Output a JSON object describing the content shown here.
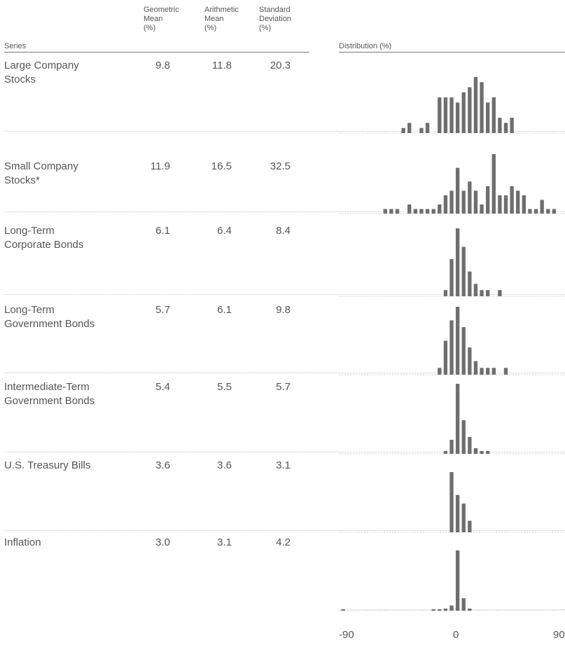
{
  "headers": {
    "series": "Series",
    "geometric": [
      "Geometric",
      "Mean",
      "(%)"
    ],
    "arithmetic": [
      "Arithmetic",
      "Mean",
      "(%)"
    ],
    "stddev": [
      "Standard",
      "Deviation",
      "(%)"
    ],
    "distribution": "Distribution (%)"
  },
  "rows": [
    {
      "name": [
        "Large Company",
        "Stocks"
      ],
      "geo": "9.8",
      "arith": "11.8",
      "sd": "20.3"
    },
    {
      "name": [
        "Small Company",
        "Stocks*"
      ],
      "geo": "11.9",
      "arith": "16.5",
      "sd": "32.5"
    },
    {
      "name": [
        "Long-Term",
        "Corporate Bonds"
      ],
      "geo": "6.1",
      "arith": "6.4",
      "sd": "8.4"
    },
    {
      "name": [
        "Long-Term",
        "Government Bonds"
      ],
      "geo": "5.7",
      "arith": "6.1",
      "sd": "9.8"
    },
    {
      "name": [
        "Intermediate-Term",
        "Government Bonds"
      ],
      "geo": "5.4",
      "arith": "5.5",
      "sd": "5.7"
    },
    {
      "name": [
        "U.S. Treasury Bills"
      ],
      "geo": "3.6",
      "arith": "3.6",
      "sd": "3.1"
    },
    {
      "name": [
        "Inflation"
      ],
      "geo": "3.0",
      "arith": "3.1",
      "sd": "4.2"
    }
  ],
  "axis": {
    "min_label": "-90",
    "mid_label": "0",
    "max_label": "90"
  },
  "chart_data": {
    "type": "bar",
    "xlabel": "",
    "ylabel": "",
    "xlim": [
      -90,
      90
    ],
    "bin_width": 5,
    "series": [
      {
        "values": [
          [
            -40,
            1
          ],
          [
            -35,
            2
          ],
          [
            -25,
            1
          ],
          [
            -20,
            2
          ],
          [
            -10,
            7
          ],
          [
            -5,
            7
          ],
          [
            0,
            7
          ],
          [
            5,
            6
          ],
          [
            10,
            8
          ],
          [
            15,
            9
          ],
          [
            20,
            11
          ],
          [
            25,
            10
          ],
          [
            30,
            6
          ],
          [
            35,
            7
          ],
          [
            40,
            3
          ],
          [
            45,
            2
          ],
          [
            50,
            3
          ]
        ]
      },
      {
        "values": [
          [
            -55,
            1
          ],
          [
            -50,
            1
          ],
          [
            -45,
            1
          ],
          [
            -35,
            2
          ],
          [
            -30,
            1
          ],
          [
            -25,
            1
          ],
          [
            -20,
            1
          ],
          [
            -15,
            1
          ],
          [
            -10,
            2
          ],
          [
            -5,
            4
          ],
          [
            0,
            5
          ],
          [
            5,
            10
          ],
          [
            10,
            5
          ],
          [
            15,
            7
          ],
          [
            20,
            5
          ],
          [
            25,
            2
          ],
          [
            30,
            6
          ],
          [
            35,
            13
          ],
          [
            40,
            4
          ],
          [
            45,
            4
          ],
          [
            50,
            6
          ],
          [
            55,
            5
          ],
          [
            60,
            4
          ],
          [
            65,
            1
          ],
          [
            70,
            1
          ],
          [
            75,
            3
          ],
          [
            80,
            1
          ],
          [
            85,
            1
          ]
        ]
      },
      {
        "values": [
          [
            -5,
            1
          ],
          [
            0,
            6
          ],
          [
            5,
            11
          ],
          [
            10,
            8
          ],
          [
            15,
            4
          ],
          [
            20,
            2
          ],
          [
            25,
            1
          ],
          [
            30,
            1
          ],
          [
            40,
            1
          ]
        ]
      },
      {
        "values": [
          [
            -10,
            1
          ],
          [
            -5,
            5
          ],
          [
            0,
            8
          ],
          [
            5,
            10
          ],
          [
            10,
            7
          ],
          [
            15,
            4
          ],
          [
            20,
            2
          ],
          [
            25,
            1
          ],
          [
            30,
            1
          ],
          [
            35,
            1
          ],
          [
            45,
            1
          ]
        ]
      },
      {
        "values": [
          [
            -5,
            1
          ],
          [
            0,
            5
          ],
          [
            5,
            25
          ],
          [
            10,
            12
          ],
          [
            15,
            6
          ],
          [
            20,
            2
          ],
          [
            25,
            1
          ],
          [
            30,
            1
          ]
        ]
      },
      {
        "values": [
          [
            0,
            21
          ],
          [
            5,
            13
          ],
          [
            10,
            10
          ],
          [
            15,
            4
          ]
        ]
      },
      {
        "values": [
          [
            -90,
            1
          ],
          [
            -15,
            1
          ],
          [
            -10,
            1
          ],
          [
            -5,
            2
          ],
          [
            0,
            5
          ],
          [
            5,
            58
          ],
          [
            10,
            12
          ],
          [
            15,
            2
          ]
        ]
      }
    ]
  }
}
